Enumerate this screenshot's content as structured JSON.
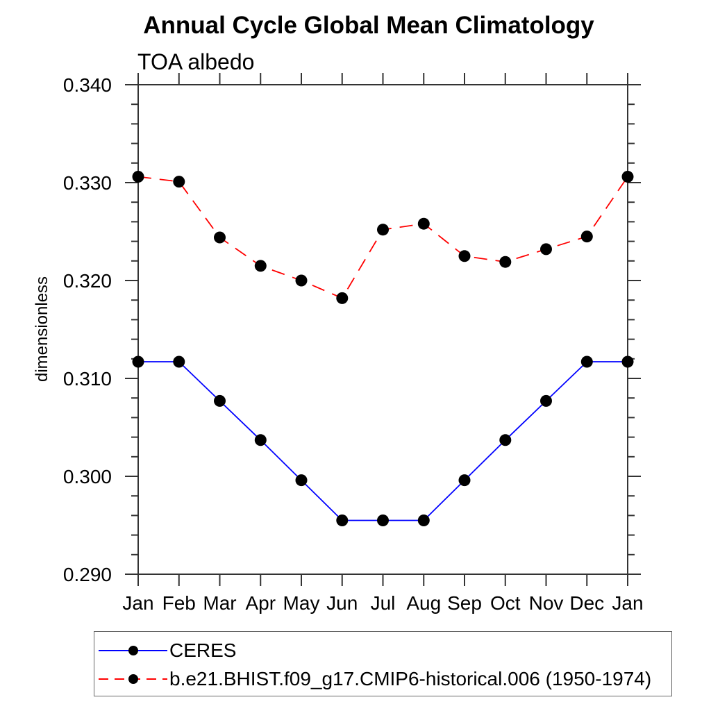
{
  "chart_data": {
    "type": "line",
    "title": "Annual Cycle Global Mean Climatology",
    "subtitle": "TOA albedo",
    "ylabel": "dimensionless",
    "xlabel": "",
    "categories": [
      "Jan",
      "Feb",
      "Mar",
      "Apr",
      "May",
      "Jun",
      "Jul",
      "Aug",
      "Sep",
      "Oct",
      "Nov",
      "Dec",
      "Jan"
    ],
    "ylim": [
      0.29,
      0.34
    ],
    "ytick_major_interval": 0.01,
    "ytick_minor_interval": 0.002,
    "ytick_labels": [
      "0.290",
      "0.300",
      "0.310",
      "0.320",
      "0.330",
      "0.340"
    ],
    "grid": false,
    "legend_position": "bottom-left",
    "marker": "filled-circle",
    "marker_color": "#000000",
    "series": [
      {
        "name": "CERES",
        "color": "#0000ff",
        "style": "solid",
        "values": [
          0.3117,
          0.3117,
          0.3077,
          0.3037,
          0.2996,
          0.2955,
          0.2955,
          0.2955,
          0.2996,
          0.3037,
          0.3077,
          0.3117,
          0.3117
        ]
      },
      {
        "name": "b.e21.BHIST.f09_g17.CMIP6-historical.006 (1950-1974)",
        "color": "#ff0000",
        "style": "dashed",
        "values": [
          0.3306,
          0.3301,
          0.3244,
          0.3215,
          0.32,
          0.3182,
          0.3252,
          0.3258,
          0.3225,
          0.3219,
          0.3232,
          0.3245,
          0.3306
        ]
      }
    ]
  }
}
